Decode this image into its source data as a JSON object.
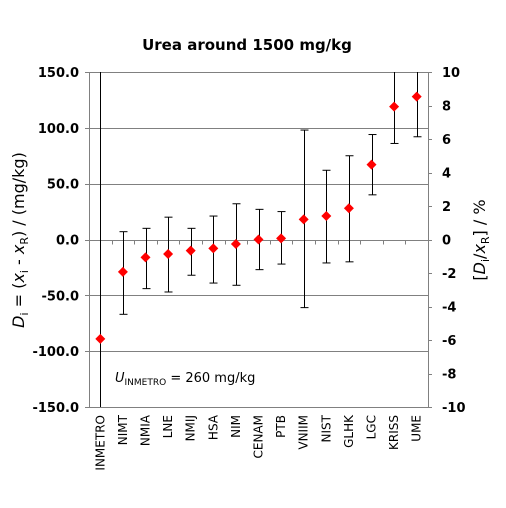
{
  "chart_data": {
    "type": "scatter",
    "title": "Urea around 1500 mg/kg",
    "ylabel": "Di = (xi - xR) / (mg/kg)",
    "ylabel_parts": [
      "D",
      "i",
      " = (",
      "x",
      "i",
      " - ",
      "x",
      "R",
      ") / (mg/kg)"
    ],
    "y2label": "[Di/xR] / %",
    "y2label_parts": [
      "[",
      "D",
      "i",
      "/",
      "x",
      "R",
      "] / %"
    ],
    "ylim": [
      -150,
      150
    ],
    "y2lim": [
      -10,
      10
    ],
    "yticks": [
      -150,
      -100,
      -50,
      0,
      50,
      100,
      150
    ],
    "ytick_labels": [
      "-150.0",
      "-100.0",
      "-50.0",
      "0.0",
      "50.0",
      "100.0",
      "150.0"
    ],
    "y2ticks": [
      -10,
      -8,
      -6,
      -4,
      -2,
      0,
      2,
      4,
      6,
      8,
      10
    ],
    "y2tick_labels": [
      "-10",
      "-8",
      "-6",
      "-4",
      "-2",
      "0",
      "2",
      "4",
      "6",
      "8",
      "10"
    ],
    "grid": true,
    "categories": [
      "INMETRO",
      "NIMT",
      "NMIA",
      "LNE",
      "NMIJ",
      "HSA",
      "NIM",
      "CENAM",
      "PTB",
      "VNIIM",
      "NIST",
      "GLHK",
      "LGC",
      "KRISS",
      "UME"
    ],
    "values": [
      -89,
      -29,
      -16,
      -13,
      -10,
      -8,
      -4,
      0,
      1,
      18,
      21,
      28,
      67,
      119,
      128
    ],
    "error_low": [
      -150,
      -67,
      -44,
      -47,
      -32,
      -39,
      -41,
      -27,
      -22,
      -61,
      -21,
      -20,
      40,
      86,
      92
    ],
    "error_high": [
      150,
      7,
      10,
      20,
      10,
      21,
      32,
      27,
      25,
      98,
      62,
      75,
      94,
      150,
      150
    ],
    "annotation_parts": [
      "U",
      "INMETRO",
      " = 260 mg/kg"
    ],
    "marker_color": "#ff0000",
    "marker_shape": "diamond"
  }
}
